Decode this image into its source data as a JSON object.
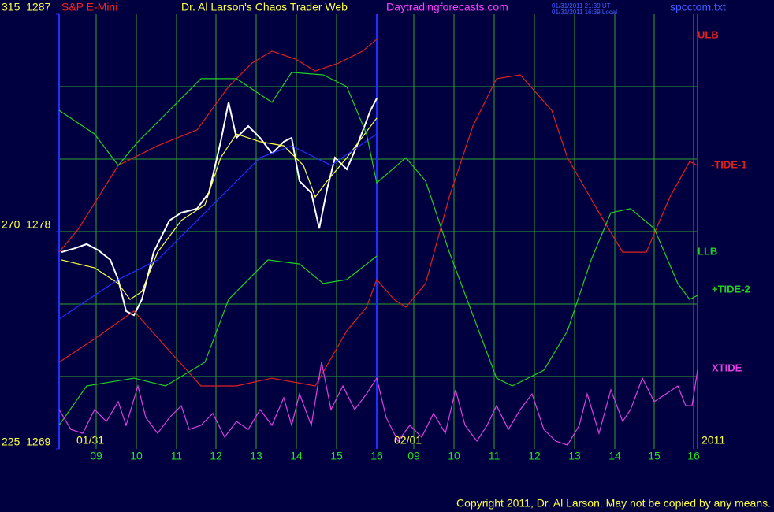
{
  "chart_data": {
    "type": "line",
    "symbol": "S&P E-Mini",
    "title": "Dr. Al Larson's Chaos Trader Web",
    "site": "Daytradingforecasts.com",
    "timestamps": [
      "01/31/2011 21:39 UT",
      "01/31/2011 16:39 Local"
    ],
    "file": "spcctom.txt",
    "date_labels": [
      "01/31",
      "02/01",
      "2011"
    ],
    "copyright": "Copyright 2011, Dr. Al Larson. May not be copied by any means.",
    "xlim": [
      0,
      81
    ],
    "ylim": [
      1269,
      1287
    ],
    "yticks": [
      {
        "value": 1287,
        "label": "315  1287"
      },
      {
        "value": 1278,
        "label": "270  1278"
      },
      {
        "value": 1269,
        "label": "225  1269"
      }
    ],
    "ygrid": [
      1272,
      1275,
      1278,
      1281,
      1284
    ],
    "xticks": [
      {
        "value": 4.7,
        "label": "09"
      },
      {
        "value": 9.8,
        "label": "10"
      },
      {
        "value": 14.9,
        "label": "11"
      },
      {
        "value": 19.9,
        "label": "12"
      },
      {
        "value": 25,
        "label": "13"
      },
      {
        "value": 30.1,
        "label": "14"
      },
      {
        "value": 35.2,
        "label": "15"
      },
      {
        "value": 40.3,
        "label": "16"
      },
      {
        "value": 45,
        "label": "09"
      },
      {
        "value": 50.1,
        "label": "10"
      },
      {
        "value": 55.2,
        "label": "11"
      },
      {
        "value": 60.3,
        "label": "12"
      },
      {
        "value": 65.4,
        "label": "13"
      },
      {
        "value": 70.5,
        "label": "14"
      },
      {
        "value": 75.5,
        "label": "15"
      },
      {
        "value": 80.5,
        "label": "16"
      }
    ],
    "divider": 40.3,
    "grid": true,
    "series": [
      {
        "color": "#ffffff",
        "x": [
          0.3,
          2,
          3.5,
          5,
          6.5,
          7.5,
          8.5,
          9.5,
          10.5,
          12,
          14,
          15.5,
          17.5,
          19,
          20.5,
          21.5,
          22.5,
          24,
          25.5,
          27,
          28.5,
          29.5,
          30.5,
          32,
          33,
          34,
          35,
          36.5,
          38,
          39.5,
          40.3
        ],
        "values": [
          1277.15,
          1277.31,
          1277.48,
          1277.22,
          1276.83,
          1276.01,
          1274.71,
          1274.54,
          1275.19,
          1277.15,
          1278.46,
          1278.78,
          1278.95,
          1279.6,
          1281.72,
          1283.35,
          1281.88,
          1282.37,
          1281.88,
          1281.23,
          1281.72,
          1281.88,
          1280.09,
          1279.6,
          1278.13,
          1279.76,
          1281.06,
          1280.58,
          1281.72,
          1283.02,
          1283.51
        ]
      },
      {
        "color": "#ffff40",
        "x": [
          0.3,
          4.5,
          7.5,
          9,
          10.5,
          12.5,
          15.5,
          18.5,
          20.5,
          22.5,
          25.5,
          28.5,
          31,
          32.5,
          34,
          36.5,
          40.3
        ],
        "values": [
          1276.83,
          1276.5,
          1275.85,
          1275.19,
          1275.52,
          1277.15,
          1278.46,
          1279.11,
          1281.06,
          1282.04,
          1281.72,
          1281.55,
          1280.74,
          1279.43,
          1280.09,
          1281.06,
          1282.7
        ]
      },
      {
        "color": "#2030ff",
        "x": [
          0,
          7.5,
          12.5,
          19.5,
          25.5,
          29.5,
          34.5,
          40.3
        ],
        "values": [
          1274.38,
          1276.01,
          1276.83,
          1279.11,
          1281.06,
          1281.55,
          1280.74,
          1282.04
        ]
      },
      {
        "name": "ULB",
        "color": "#e02020",
        "x": [
          0,
          2.5,
          7.5,
          12.5,
          17.5,
          21.5,
          24.5,
          27,
          30,
          32.5,
          35.5,
          38.5,
          40.3
        ],
        "values": [
          1277.15,
          1278.13,
          1280.74,
          1281.55,
          1282.21,
          1284,
          1284.98,
          1285.47,
          1285.14,
          1284.65,
          1284.98,
          1285.47,
          1285.96
        ]
      },
      {
        "name": "-TIDE-1",
        "color": "#e02020",
        "x": [
          0,
          4.5,
          9.5,
          13.5,
          18,
          22.5,
          27,
          32.5,
          36.5,
          39,
          40.3,
          42.5,
          44,
          46.5,
          49.5,
          52.5,
          55.5,
          58.5,
          62.5,
          64.5,
          68.5,
          71.5,
          74.5,
          77.5,
          80,
          81
        ],
        "values": [
          1272.59,
          1273.56,
          1274.71,
          1273.24,
          1271.61,
          1271.61,
          1271.93,
          1271.61,
          1273.89,
          1274.87,
          1276.01,
          1275.19,
          1274.87,
          1275.85,
          1279.43,
          1282.37,
          1284.33,
          1284.49,
          1283.02,
          1281.06,
          1278.78,
          1277.15,
          1277.15,
          1279.43,
          1280.9,
          1280.74
        ]
      },
      {
        "name": "LLB",
        "color": "#20d020",
        "x": [
          0,
          3.5,
          9.5,
          13.5,
          18.5,
          21.5,
          26.5,
          30.5,
          33.5,
          36.5,
          40.3
        ],
        "values": [
          1269.98,
          1271.61,
          1271.93,
          1271.61,
          1272.59,
          1275.19,
          1276.83,
          1276.66,
          1275.85,
          1276.01,
          1276.99
        ]
      },
      {
        "name": "+TIDE-2",
        "color": "#20d020",
        "x": [
          0,
          4.5,
          7.5,
          10,
          13.5,
          18,
          22.5,
          27,
          29.5,
          33.5,
          36.5,
          39,
          40.3,
          44,
          46.5,
          49.5,
          52.5,
          55.5,
          57.5,
          61.5,
          64.5,
          67.5,
          70,
          72.5,
          75.5,
          78.5,
          80,
          81
        ],
        "values": [
          1283.02,
          1282.04,
          1280.74,
          1281.72,
          1282.86,
          1284.33,
          1284.33,
          1283.35,
          1284.59,
          1284.49,
          1284,
          1282.04,
          1280.02,
          1281.06,
          1280.09,
          1277.15,
          1274.54,
          1271.93,
          1271.61,
          1272.26,
          1273.89,
          1276.83,
          1278.78,
          1278.95,
          1278.13,
          1275.85,
          1275.19,
          1275.36
        ]
      },
      {
        "name": "XTIDE",
        "color": "#e040e0",
        "x": [
          0,
          1.5,
          3,
          4.5,
          6,
          7.5,
          8.5,
          10,
          11,
          12.5,
          14,
          15.5,
          16.5,
          18,
          19.5,
          21,
          22.5,
          24,
          25.5,
          27,
          28.5,
          29.5,
          30.5,
          32,
          33.3,
          34.5,
          36,
          37.5,
          39,
          40.3,
          41.5,
          43,
          44.5,
          46,
          47.5,
          49,
          50.3,
          51.5,
          53,
          54.3,
          55.5,
          57,
          58.5,
          60,
          61.5,
          63,
          64.5,
          66,
          67,
          68.5,
          70,
          71.5,
          72.5,
          74,
          75.5,
          77,
          78.5,
          79.5,
          80.3,
          81
        ],
        "values": [
          1270.63,
          1269.81,
          1269.65,
          1270.63,
          1270.14,
          1270.96,
          1269.98,
          1271.61,
          1270.3,
          1269.65,
          1270.3,
          1270.79,
          1269.81,
          1269.98,
          1270.47,
          1269.49,
          1270.14,
          1269.81,
          1270.63,
          1269.98,
          1271.12,
          1269.98,
          1271.28,
          1269.98,
          1272.59,
          1270.63,
          1271.61,
          1270.63,
          1271.28,
          1271.93,
          1270.3,
          1269.33,
          1269.98,
          1269.49,
          1270.47,
          1269.65,
          1271.45,
          1269.98,
          1269.33,
          1269.98,
          1270.79,
          1269.81,
          1270.63,
          1271.28,
          1269.81,
          1269.33,
          1269.16,
          1269.98,
          1271.28,
          1269.65,
          1271.45,
          1270.14,
          1270.63,
          1271.93,
          1270.96,
          1271.28,
          1271.61,
          1270.79,
          1270.79,
          1272.26
        ]
      }
    ]
  }
}
